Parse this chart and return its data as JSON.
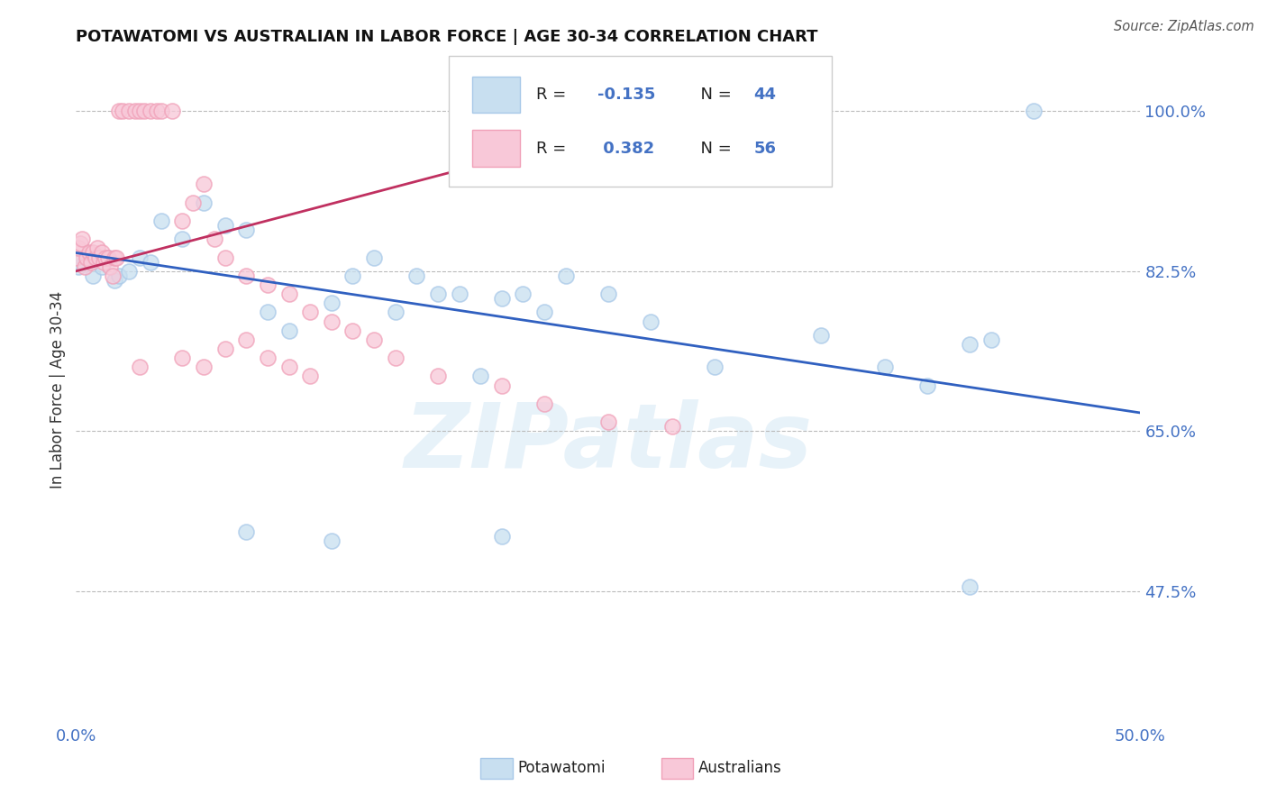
{
  "title": "POTAWATOMI VS AUSTRALIAN IN LABOR FORCE | AGE 30-34 CORRELATION CHART",
  "source": "Source: ZipAtlas.com",
  "ylabel_left": "In Labor Force | Age 30-34",
  "y_ticks": [
    0.475,
    0.65,
    0.825,
    1.0
  ],
  "y_tick_labels": [
    "47.5%",
    "65.0%",
    "82.5%",
    "100.0%"
  ],
  "xlim": [
    0.0,
    0.5
  ],
  "ylim": [
    0.33,
    1.06
  ],
  "R_blue": -0.135,
  "N_blue": 44,
  "R_pink": 0.382,
  "N_pink": 56,
  "blue_color": "#a8c8e8",
  "pink_color": "#f0a0b8",
  "blue_fill": "#c8dff0",
  "pink_fill": "#f8c8d8",
  "blue_line_color": "#3060c0",
  "pink_line_color": "#c03060",
  "legend_blue_label": "Potawatomi",
  "legend_pink_label": "Australians",
  "watermark": "ZIPatlas",
  "blue_x": [
    0.001,
    0.002,
    0.005,
    0.008,
    0.01,
    0.012,
    0.015,
    0.018,
    0.02,
    0.025,
    0.03,
    0.035,
    0.04,
    0.05,
    0.06,
    0.07,
    0.08,
    0.09,
    0.1,
    0.12,
    0.13,
    0.14,
    0.15,
    0.16,
    0.17,
    0.18,
    0.19,
    0.2,
    0.21,
    0.22,
    0.23,
    0.25,
    0.27,
    0.3,
    0.35,
    0.38,
    0.4,
    0.42,
    0.43,
    0.45,
    0.08,
    0.12,
    0.2,
    0.42
  ],
  "blue_y": [
    0.83,
    0.835,
    0.84,
    0.82,
    0.84,
    0.83,
    0.84,
    0.815,
    0.82,
    0.825,
    0.84,
    0.835,
    0.88,
    0.86,
    0.9,
    0.875,
    0.87,
    0.78,
    0.76,
    0.79,
    0.82,
    0.84,
    0.78,
    0.82,
    0.8,
    0.8,
    0.71,
    0.795,
    0.8,
    0.78,
    0.82,
    0.8,
    0.77,
    0.72,
    0.755,
    0.72,
    0.7,
    0.745,
    0.75,
    1.0,
    0.54,
    0.53,
    0.535,
    0.48
  ],
  "pink_x": [
    0.0,
    0.001,
    0.002,
    0.003,
    0.004,
    0.005,
    0.006,
    0.007,
    0.008,
    0.009,
    0.01,
    0.011,
    0.012,
    0.013,
    0.014,
    0.015,
    0.016,
    0.017,
    0.018,
    0.019,
    0.02,
    0.022,
    0.025,
    0.028,
    0.03,
    0.032,
    0.035,
    0.038,
    0.04,
    0.045,
    0.05,
    0.055,
    0.06,
    0.065,
    0.07,
    0.08,
    0.09,
    0.1,
    0.11,
    0.12,
    0.13,
    0.14,
    0.15,
    0.17,
    0.2,
    0.22,
    0.03,
    0.05,
    0.06,
    0.07,
    0.08,
    0.09,
    0.1,
    0.11,
    0.25,
    0.28
  ],
  "pink_y": [
    0.84,
    0.85,
    0.855,
    0.86,
    0.83,
    0.84,
    0.845,
    0.835,
    0.845,
    0.84,
    0.85,
    0.84,
    0.845,
    0.835,
    0.84,
    0.84,
    0.83,
    0.82,
    0.84,
    0.84,
    1.0,
    1.0,
    1.0,
    1.0,
    1.0,
    1.0,
    1.0,
    1.0,
    1.0,
    1.0,
    0.88,
    0.9,
    0.92,
    0.86,
    0.84,
    0.82,
    0.81,
    0.8,
    0.78,
    0.77,
    0.76,
    0.75,
    0.73,
    0.71,
    0.7,
    0.68,
    0.72,
    0.73,
    0.72,
    0.74,
    0.75,
    0.73,
    0.72,
    0.71,
    0.66,
    0.655
  ],
  "blue_trend_x": [
    0.0,
    0.5
  ],
  "blue_trend_y": [
    0.845,
    0.67
  ],
  "pink_trend_x": [
    0.0,
    0.285
  ],
  "pink_trend_y": [
    0.825,
    1.0
  ]
}
